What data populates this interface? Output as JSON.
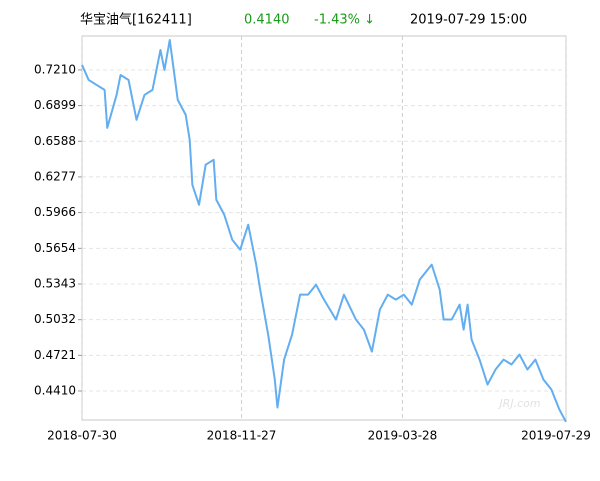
{
  "chart_data": {
    "type": "line",
    "title": "华宝油气[162411]",
    "last_price": "0.4140",
    "change": "-1.43% ↓",
    "timestamp": "2019-07-29 15:00",
    "watermark": "JRJ.com",
    "xlim": [
      "2018-07-30",
      "2019-07-29"
    ],
    "xticks": [
      "2018-07-30",
      "2018-11-27",
      "2019-03-28",
      "2019-07-29"
    ],
    "ylim": [
      0.4157,
      0.7506
    ],
    "yticks": [
      {
        "value": 0.721,
        "label": "0.7210"
      },
      {
        "value": 0.6899,
        "label": "0.6899"
      },
      {
        "value": 0.6588,
        "label": "0.6588"
      },
      {
        "value": 0.6277,
        "label": "0.6277"
      },
      {
        "value": 0.5966,
        "label": "0.5966"
      },
      {
        "value": 0.5654,
        "label": "0.5654"
      },
      {
        "value": 0.5343,
        "label": "0.5343"
      },
      {
        "value": 0.5032,
        "label": "0.5032"
      },
      {
        "value": 0.4721,
        "label": "0.4721"
      },
      {
        "value": 0.441,
        "label": "0.4410"
      }
    ],
    "grid": true,
    "x": [
      "2018-07-30",
      "2018-08-04",
      "2018-08-10",
      "2018-08-16",
      "2018-08-18",
      "2018-08-25",
      "2018-08-28",
      "2018-09-03",
      "2018-09-09",
      "2018-09-15",
      "2018-09-21",
      "2018-09-27",
      "2018-09-30",
      "2018-10-04",
      "2018-10-10",
      "2018-10-16",
      "2018-10-19",
      "2018-10-21",
      "2018-10-26",
      "2018-10-31",
      "2018-11-06",
      "2018-11-08",
      "2018-11-14",
      "2018-11-20",
      "2018-11-26",
      "2018-12-02",
      "2018-12-08",
      "2018-12-11",
      "2018-12-17",
      "2018-12-22",
      "2018-12-24",
      "2018-12-29",
      "2019-01-04",
      "2019-01-10",
      "2019-01-16",
      "2019-01-22",
      "2019-01-28",
      "2019-02-06",
      "2019-02-12",
      "2019-02-21",
      "2019-02-27",
      "2019-03-05",
      "2019-03-11",
      "2019-03-17",
      "2019-03-23",
      "2019-03-29",
      "2019-04-04",
      "2019-04-10",
      "2019-04-19",
      "2019-04-25",
      "2019-04-28",
      "2019-05-04",
      "2019-05-10",
      "2019-05-13",
      "2019-05-16",
      "2019-05-19",
      "2019-05-25",
      "2019-05-31",
      "2019-06-06",
      "2019-06-12",
      "2019-06-18",
      "2019-06-24",
      "2019-06-30",
      "2019-07-06",
      "2019-07-12",
      "2019-07-18",
      "2019-07-24",
      "2019-07-29"
    ],
    "series": [
      {
        "color": "#62aef0",
        "values": [
          0.7254,
          0.7123,
          0.7079,
          0.7036,
          0.6705,
          0.6992,
          0.7166,
          0.7123,
          0.6775,
          0.6992,
          0.7036,
          0.7384,
          0.721,
          0.7471,
          0.6949,
          0.6818,
          0.66,
          0.6208,
          0.6034,
          0.6383,
          0.6426,
          0.6078,
          0.5947,
          0.5729,
          0.5642,
          0.586,
          0.5512,
          0.5294,
          0.4902,
          0.451,
          0.4266,
          0.4684,
          0.4902,
          0.525,
          0.525,
          0.5337,
          0.5207,
          0.5033,
          0.525,
          0.5033,
          0.4945,
          0.4754,
          0.512,
          0.525,
          0.5207,
          0.525,
          0.5163,
          0.5381,
          0.5512,
          0.5294,
          0.5033,
          0.5033,
          0.5163,
          0.4945,
          0.5163,
          0.4858,
          0.4684,
          0.4466,
          0.4597,
          0.4684,
          0.4641,
          0.4728,
          0.4597,
          0.4684,
          0.451,
          0.4423,
          0.4249,
          0.414
        ]
      }
    ]
  }
}
